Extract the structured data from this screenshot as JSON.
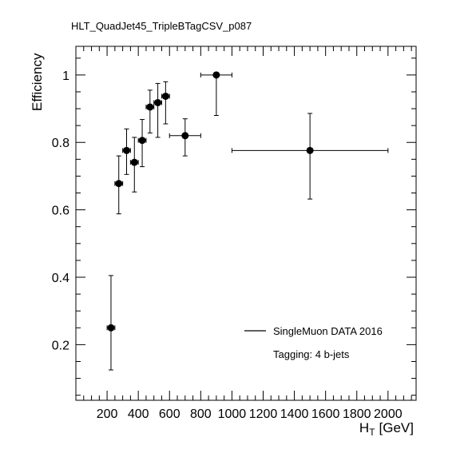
{
  "chart_data": {
    "type": "scatter",
    "title": "HLT_QuadJet45_TripleBTagCSV_p087",
    "xlabel": "H",
    "xlabel_sub": "T",
    "xlabel_unit": "[GeV]",
    "ylabel": "Efficiency",
    "xlim": [
      0,
      2180
    ],
    "ylim": [
      0.035,
      1.085
    ],
    "x_ticks": [
      200,
      400,
      600,
      800,
      1000,
      1200,
      1400,
      1600,
      1800,
      2000
    ],
    "x_tick_labels": [
      "200",
      "400",
      "600",
      "800",
      "1000",
      "1200",
      "1400",
      "1600",
      "1800",
      "2000"
    ],
    "y_ticks": [
      0.2,
      0.4,
      0.6,
      0.8,
      1.0
    ],
    "y_tick_labels": [
      "0.2",
      "0.4",
      "0.6",
      "0.8",
      "1"
    ],
    "grid": false,
    "legend_position": "bottom-right",
    "series": [
      {
        "name": "SingleMuon DATA 2016",
        "color": "#000000",
        "points": [
          {
            "x": 225,
            "xerr": 25,
            "y": 0.25,
            "ylo": 0.125,
            "yhi": 0.405
          },
          {
            "x": 275,
            "xerr": 25,
            "y": 0.678,
            "ylo": 0.588,
            "yhi": 0.76
          },
          {
            "x": 325,
            "xerr": 25,
            "y": 0.776,
            "ylo": 0.705,
            "yhi": 0.84
          },
          {
            "x": 375,
            "xerr": 25,
            "y": 0.741,
            "ylo": 0.653,
            "yhi": 0.815
          },
          {
            "x": 425,
            "xerr": 25,
            "y": 0.806,
            "ylo": 0.728,
            "yhi": 0.868
          },
          {
            "x": 475,
            "xerr": 25,
            "y": 0.905,
            "ylo": 0.828,
            "yhi": 0.955
          },
          {
            "x": 525,
            "xerr": 25,
            "y": 0.918,
            "ylo": 0.815,
            "yhi": 0.975
          },
          {
            "x": 575,
            "xerr": 25,
            "y": 0.937,
            "ylo": 0.855,
            "yhi": 0.98
          },
          {
            "x": 700,
            "xerr": 100,
            "y": 0.82,
            "ylo": 0.76,
            "yhi": 0.87
          },
          {
            "x": 900,
            "xerr": 100,
            "y": 1.0,
            "ylo": 0.88,
            "yhi": 1.0
          },
          {
            "x": 1500,
            "xerr": 500,
            "y": 0.776,
            "ylo": 0.632,
            "yhi": 0.886
          }
        ]
      }
    ],
    "annotation": "Tagging: 4 b-jets"
  }
}
